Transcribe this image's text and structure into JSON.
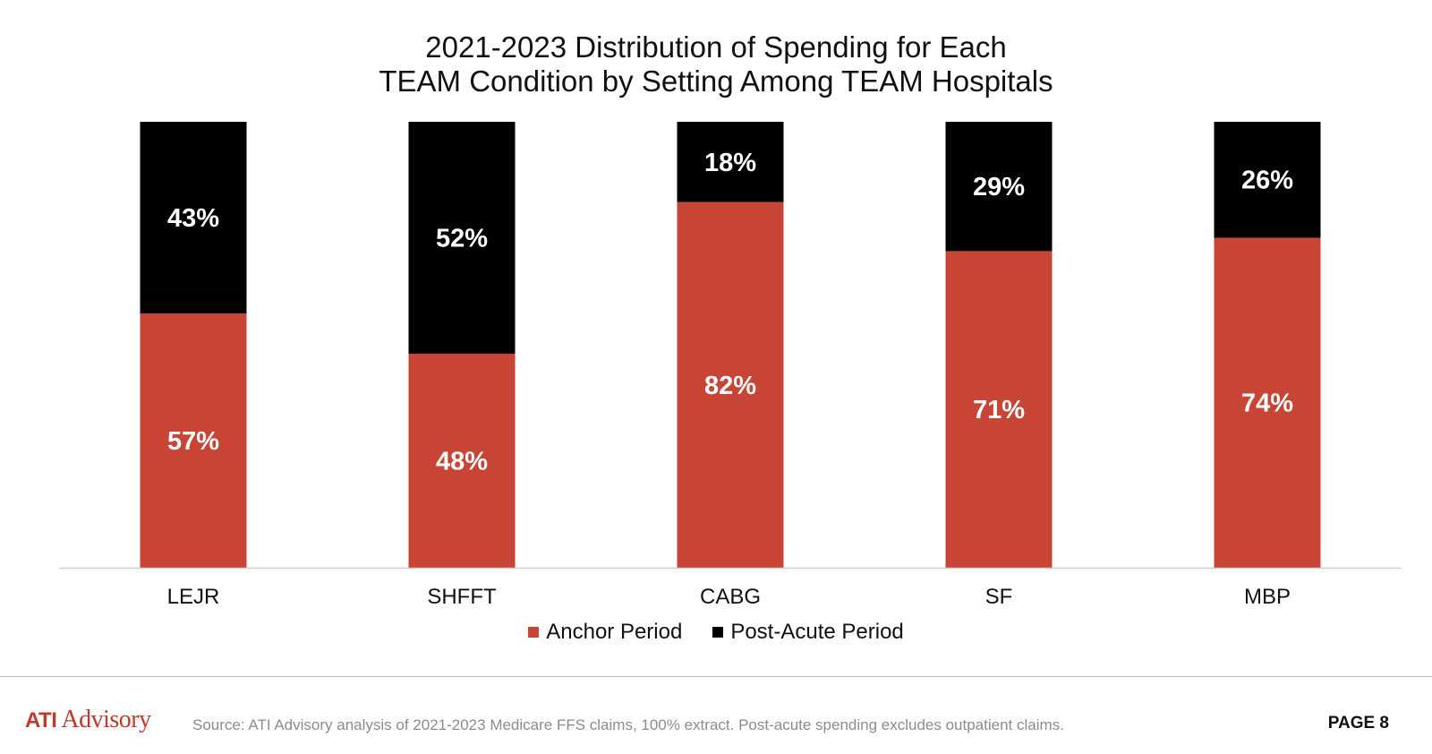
{
  "chart_data": {
    "type": "bar",
    "stacked": true,
    "title_lines": [
      "2021-2023 Distribution of Spending for Each",
      "TEAM Condition by Setting Among TEAM Hospitals"
    ],
    "categories": [
      "LEJR",
      "SHFFT",
      "CABG",
      "SF",
      "MBP"
    ],
    "series": [
      {
        "name": "Anchor Period",
        "color": "#c84434",
        "values": [
          57,
          48,
          82,
          71,
          74
        ],
        "labels": [
          "57%",
          "48%",
          "82%",
          "71%",
          "74%"
        ]
      },
      {
        "name": "Post-Acute Period",
        "color": "#000000",
        "values": [
          43,
          52,
          18,
          29,
          26
        ],
        "labels": [
          "43%",
          "52%",
          "18%",
          "29%",
          "26%"
        ]
      }
    ],
    "ylim": [
      0,
      100
    ],
    "grid": false,
    "legend": "bottom"
  },
  "footer": {
    "logo_ati": "ATI",
    "logo_rest": "Advisory",
    "source": "Source: ATI Advisory analysis of 2021-2023 Medicare FFS claims, 100% extract. Post-acute spending excludes outpatient claims.",
    "page": "PAGE 8"
  }
}
